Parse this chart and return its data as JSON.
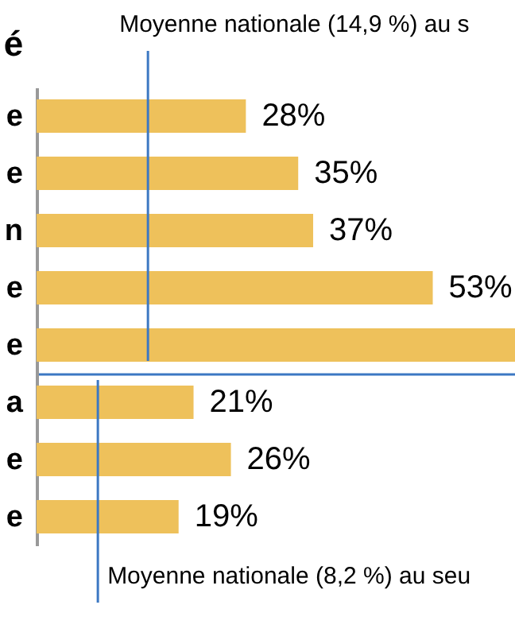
{
  "chart_data": [
    {
      "type": "bar",
      "orientation": "horizontal",
      "title": "é",
      "categories": [
        "e",
        "e",
        "n",
        "e",
        "e"
      ],
      "values": [
        28,
        35,
        37,
        53,
        64
      ],
      "value_labels": [
        "28%",
        "35%",
        "37%",
        "53%",
        null
      ],
      "color": "#eec15b",
      "xlim": [
        0,
        64
      ],
      "tick_labels": "y",
      "grid": false,
      "ref_lines": [
        {
          "axis": "x",
          "value": 14.9,
          "label": "Moyenne nationale (14,9 %) au s",
          "color": "#3c78c3"
        }
      ]
    },
    {
      "type": "bar",
      "orientation": "horizontal",
      "categories": [
        "a",
        "e",
        "e"
      ],
      "values": [
        21,
        26,
        19
      ],
      "value_labels": [
        "21%",
        "26%",
        "19%"
      ],
      "color": "#eec15b",
      "xlim": [
        0,
        64
      ],
      "tick_labels": "y",
      "grid": false,
      "ref_lines": [
        {
          "axis": "x",
          "value": 8.2,
          "label": "Moyenne nationale (8,2 %) au seu",
          "color": "#3c78c3"
        }
      ]
    }
  ]
}
